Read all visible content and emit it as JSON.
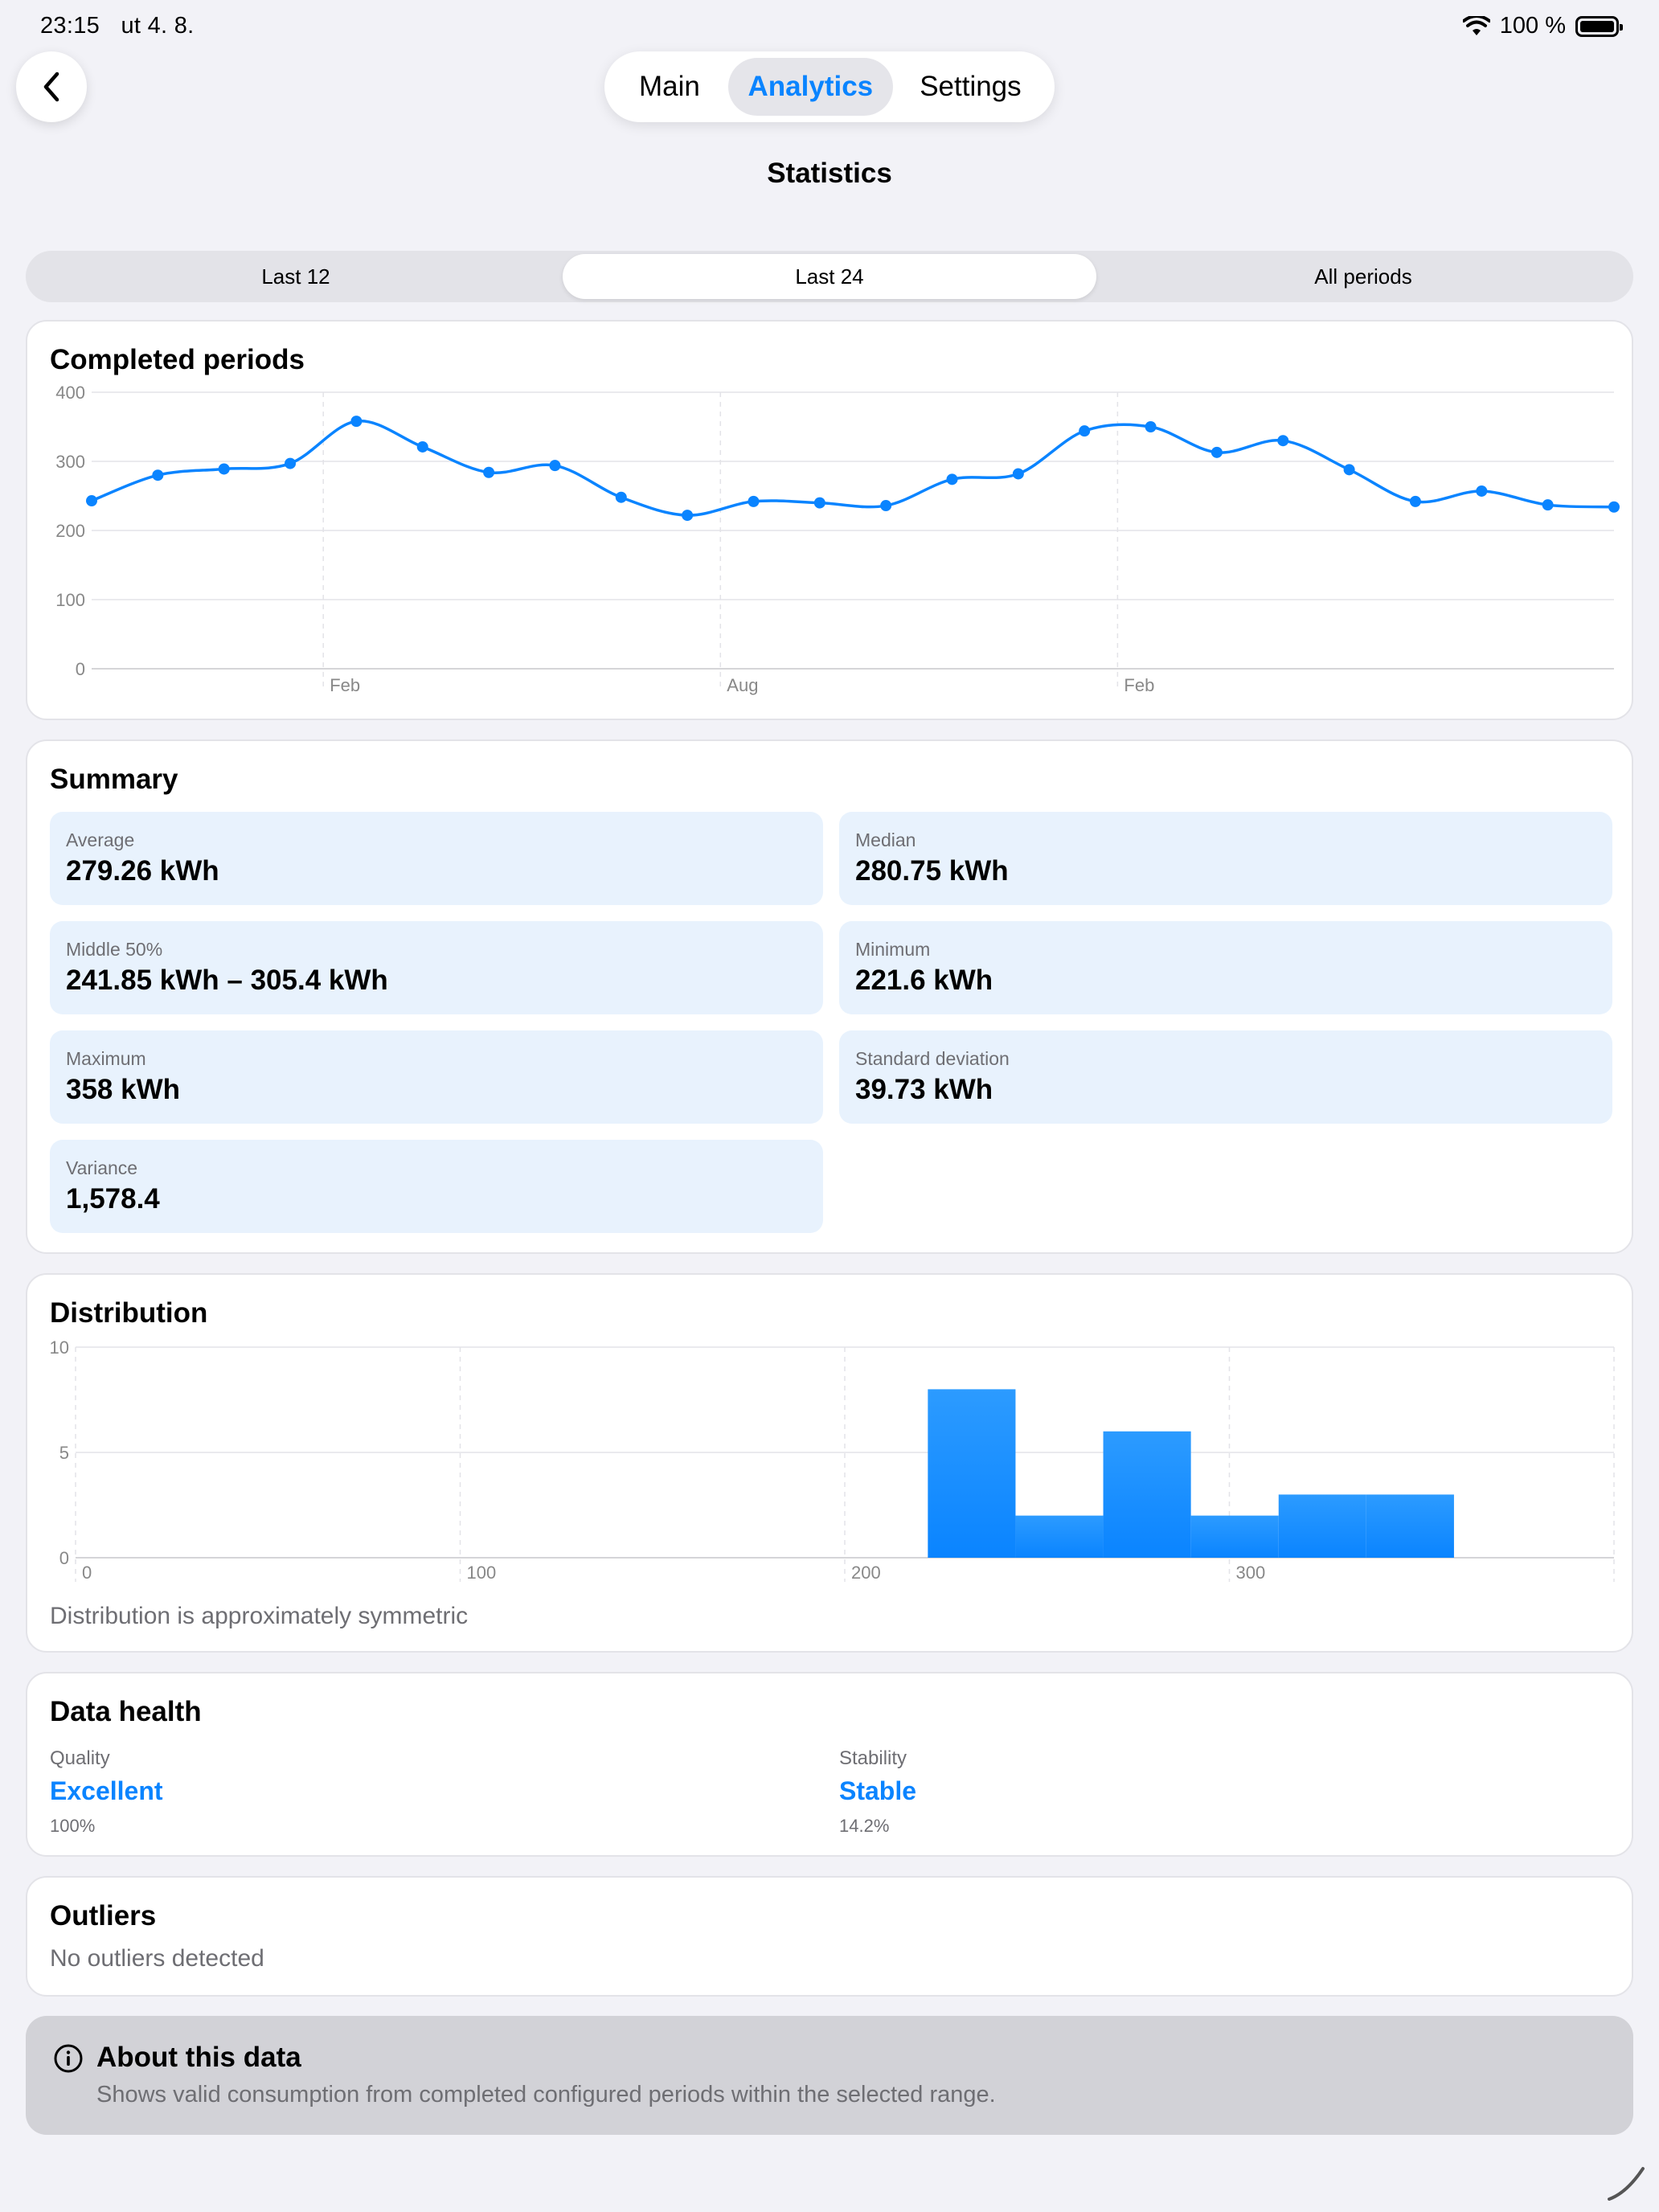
{
  "status": {
    "time": "23:15",
    "date": "ut 4. 8.",
    "battery": "100 %"
  },
  "nav": {
    "tabs": [
      "Main",
      "Analytics",
      "Settings"
    ],
    "active": "Analytics"
  },
  "page": {
    "title": "Statistics"
  },
  "range": {
    "options": [
      "Last 12",
      "Last 24",
      "All periods"
    ],
    "selected": "Last 24"
  },
  "completed": {
    "title": "Completed periods",
    "chart_data": {
      "type": "line",
      "title": "Completed periods",
      "x_tick_labels": [
        "Feb",
        "Aug",
        "Feb"
      ],
      "ylim": [
        0,
        400
      ],
      "y_ticks": [
        0,
        100,
        200,
        300,
        400
      ],
      "grid": true,
      "series": [
        {
          "values": [
            243,
            280,
            289,
            297,
            358,
            321,
            284,
            294,
            248,
            222,
            242,
            240,
            236,
            274,
            282,
            344,
            350,
            313,
            330,
            288,
            242,
            257,
            237,
            234
          ]
        }
      ],
      "color": "#0a84ff"
    }
  },
  "summary": {
    "title": "Summary",
    "items": [
      {
        "label": "Average",
        "value": "279.26 kWh"
      },
      {
        "label": "Median",
        "value": "280.75 kWh"
      },
      {
        "label": "Middle 50%",
        "value": "241.85 kWh – 305.4 kWh"
      },
      {
        "label": "Minimum",
        "value": "221.6 kWh"
      },
      {
        "label": "Maximum",
        "value": "358 kWh"
      },
      {
        "label": "Standard deviation",
        "value": "39.73 kWh"
      },
      {
        "label": "Variance",
        "value": "1,578.4"
      }
    ]
  },
  "distribution": {
    "title": "Distribution",
    "note": "Distribution is approximately symmetric",
    "chart_data": {
      "type": "bar",
      "bin_edges": [
        221.6,
        244.4,
        267.2,
        290,
        312.8,
        335.6,
        358.4
      ],
      "values": [
        8,
        2,
        6,
        2,
        3,
        3
      ],
      "xlim": [
        0,
        400
      ],
      "x_ticks": [
        0,
        100,
        200,
        300
      ],
      "ylim": [
        0,
        10
      ],
      "y_ticks": [
        0,
        5,
        10
      ],
      "grid": true,
      "color": "#0a84ff"
    }
  },
  "health": {
    "title": "Data health",
    "quality": {
      "label": "Quality",
      "value": "Excellent",
      "sub": "100%"
    },
    "stability": {
      "label": "Stability",
      "value": "Stable",
      "sub": "14.2%"
    }
  },
  "outliers": {
    "title": "Outliers",
    "text": "No outliers detected"
  },
  "about": {
    "title": "About this data",
    "text": "Shows valid consumption from completed configured periods within the selected range."
  },
  "icons": [
    "wifi-icon",
    "battery-icon",
    "chevron-left-icon",
    "info-icon"
  ]
}
